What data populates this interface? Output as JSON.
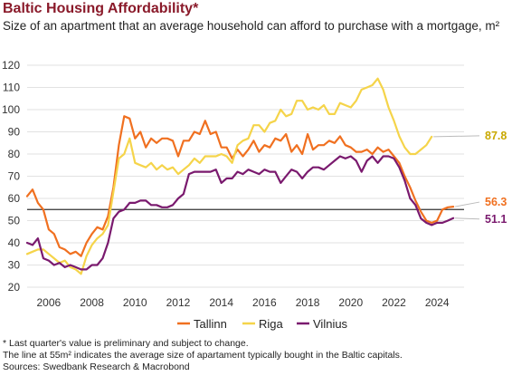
{
  "title": "Baltic Housing Affordability*",
  "subtitle": "Size of an apartment that an average household can afford to purchase with a mortgage, m²",
  "footnotes": [
    "* Last quarter's value is preliminary and subject to change.",
    "The line at 55m² indicates the average size of apartament typically bought in the Baltic capitals.",
    "Sources: Swedbank Research & Macrobond"
  ],
  "colors": {
    "tallinn": "#f07020",
    "riga": "#f5d44a",
    "vilnius": "#7a1a6e",
    "title": "#8a1a2a",
    "reference": "#333333",
    "grid": "#e2e2e2"
  },
  "chart_data": {
    "type": "line",
    "title": "Baltic Housing Affordability*",
    "xlabel": "",
    "ylabel": "",
    "xlim": [
      2005.0,
      2025.25
    ],
    "ylim": [
      20,
      120
    ],
    "yticks": [
      20,
      30,
      40,
      50,
      60,
      70,
      80,
      90,
      100,
      110,
      120
    ],
    "xticks": [
      2006,
      2008,
      2010,
      2012,
      2014,
      2016,
      2018,
      2020,
      2022,
      2024
    ],
    "grid": true,
    "legend": "bottom",
    "reference_line": {
      "value": 55
    },
    "series": [
      {
        "name": "Tallinn",
        "end_label": "56.3",
        "points": [
          [
            2005.0,
            61
          ],
          [
            2005.25,
            64
          ],
          [
            2005.5,
            58
          ],
          [
            2005.75,
            55
          ],
          [
            2006.0,
            46
          ],
          [
            2006.25,
            44
          ],
          [
            2006.5,
            38
          ],
          [
            2006.75,
            37
          ],
          [
            2007.0,
            35
          ],
          [
            2007.25,
            36
          ],
          [
            2007.5,
            34
          ],
          [
            2007.75,
            40
          ],
          [
            2008.0,
            44
          ],
          [
            2008.25,
            47
          ],
          [
            2008.5,
            46
          ],
          [
            2008.75,
            52
          ],
          [
            2009.0,
            65
          ],
          [
            2009.25,
            84
          ],
          [
            2009.5,
            97
          ],
          [
            2009.75,
            96
          ],
          [
            2010.0,
            87
          ],
          [
            2010.25,
            90
          ],
          [
            2010.5,
            83
          ],
          [
            2010.75,
            87
          ],
          [
            2011.0,
            85
          ],
          [
            2011.25,
            87
          ],
          [
            2011.5,
            87
          ],
          [
            2011.75,
            86
          ],
          [
            2012.0,
            79
          ],
          [
            2012.25,
            86
          ],
          [
            2012.5,
            86
          ],
          [
            2012.75,
            90
          ],
          [
            2013.0,
            89
          ],
          [
            2013.25,
            95
          ],
          [
            2013.5,
            89
          ],
          [
            2013.75,
            90
          ],
          [
            2014.0,
            83
          ],
          [
            2014.25,
            83
          ],
          [
            2014.5,
            78
          ],
          [
            2014.75,
            82
          ],
          [
            2015.0,
            79
          ],
          [
            2015.25,
            82
          ],
          [
            2015.5,
            86
          ],
          [
            2015.75,
            81
          ],
          [
            2016.0,
            84
          ],
          [
            2016.25,
            83
          ],
          [
            2016.5,
            87
          ],
          [
            2016.75,
            86
          ],
          [
            2017.0,
            89
          ],
          [
            2017.25,
            81
          ],
          [
            2017.5,
            84
          ],
          [
            2017.75,
            80
          ],
          [
            2018.0,
            89
          ],
          [
            2018.25,
            82
          ],
          [
            2018.5,
            84
          ],
          [
            2018.75,
            84
          ],
          [
            2019.0,
            86
          ],
          [
            2019.25,
            85
          ],
          [
            2019.5,
            88
          ],
          [
            2019.75,
            84
          ],
          [
            2020.0,
            83
          ],
          [
            2020.25,
            81
          ],
          [
            2020.5,
            81
          ],
          [
            2020.75,
            82
          ],
          [
            2021.0,
            80
          ],
          [
            2021.25,
            83
          ],
          [
            2021.5,
            81
          ],
          [
            2021.75,
            82
          ],
          [
            2022.0,
            79
          ],
          [
            2022.25,
            76
          ],
          [
            2022.5,
            70
          ],
          [
            2022.75,
            65
          ],
          [
            2023.0,
            59
          ],
          [
            2023.25,
            54
          ],
          [
            2023.5,
            50
          ],
          [
            2023.75,
            49
          ],
          [
            2024.0,
            50
          ],
          [
            2024.25,
            55
          ],
          [
            2024.5,
            56
          ],
          [
            2024.75,
            56.3
          ]
        ]
      },
      {
        "name": "Riga",
        "end_label": "87.8",
        "points": [
          [
            2005.0,
            35
          ],
          [
            2005.25,
            36
          ],
          [
            2005.5,
            37
          ],
          [
            2005.75,
            37
          ],
          [
            2006.0,
            35
          ],
          [
            2006.25,
            33
          ],
          [
            2006.5,
            31
          ],
          [
            2006.75,
            32
          ],
          [
            2007.0,
            29
          ],
          [
            2007.25,
            28
          ],
          [
            2007.5,
            26
          ],
          [
            2007.75,
            34
          ],
          [
            2008.0,
            39
          ],
          [
            2008.25,
            42
          ],
          [
            2008.5,
            44
          ],
          [
            2008.75,
            48
          ],
          [
            2009.0,
            63
          ],
          [
            2009.25,
            78
          ],
          [
            2009.5,
            80
          ],
          [
            2009.75,
            87
          ],
          [
            2010.0,
            76
          ],
          [
            2010.25,
            75
          ],
          [
            2010.5,
            74
          ],
          [
            2010.75,
            76
          ],
          [
            2011.0,
            73
          ],
          [
            2011.25,
            75
          ],
          [
            2011.5,
            73
          ],
          [
            2011.75,
            74
          ],
          [
            2012.0,
            71
          ],
          [
            2012.25,
            73
          ],
          [
            2012.5,
            75
          ],
          [
            2012.75,
            78
          ],
          [
            2013.0,
            76
          ],
          [
            2013.25,
            79
          ],
          [
            2013.5,
            79
          ],
          [
            2013.75,
            79
          ],
          [
            2014.0,
            80
          ],
          [
            2014.25,
            79
          ],
          [
            2014.5,
            76
          ],
          [
            2014.75,
            84
          ],
          [
            2015.0,
            86
          ],
          [
            2015.25,
            87
          ],
          [
            2015.5,
            93
          ],
          [
            2015.75,
            93
          ],
          [
            2016.0,
            90
          ],
          [
            2016.25,
            94
          ],
          [
            2016.5,
            95
          ],
          [
            2016.75,
            100
          ],
          [
            2017.0,
            97
          ],
          [
            2017.25,
            98
          ],
          [
            2017.5,
            104
          ],
          [
            2017.75,
            104
          ],
          [
            2018.0,
            100
          ],
          [
            2018.25,
            101
          ],
          [
            2018.5,
            100
          ],
          [
            2018.75,
            102
          ],
          [
            2019.0,
            98
          ],
          [
            2019.25,
            98
          ],
          [
            2019.5,
            103
          ],
          [
            2019.75,
            102
          ],
          [
            2020.0,
            101
          ],
          [
            2020.25,
            104
          ],
          [
            2020.5,
            109
          ],
          [
            2020.75,
            110
          ],
          [
            2021.0,
            111
          ],
          [
            2021.25,
            114
          ],
          [
            2021.5,
            109
          ],
          [
            2021.75,
            101
          ],
          [
            2022.0,
            95
          ],
          [
            2022.25,
            88
          ],
          [
            2022.5,
            83
          ],
          [
            2022.75,
            80
          ],
          [
            2023.0,
            80
          ],
          [
            2023.25,
            82
          ],
          [
            2023.5,
            84
          ],
          [
            2023.75,
            87.8
          ]
        ]
      },
      {
        "name": "Vilnius",
        "end_label": "51.1",
        "points": [
          [
            2005.0,
            40
          ],
          [
            2005.25,
            39
          ],
          [
            2005.5,
            42
          ],
          [
            2005.75,
            33
          ],
          [
            2006.0,
            32
          ],
          [
            2006.25,
            30
          ],
          [
            2006.5,
            31
          ],
          [
            2006.75,
            29
          ],
          [
            2007.0,
            30
          ],
          [
            2007.25,
            29
          ],
          [
            2007.5,
            28
          ],
          [
            2007.75,
            28
          ],
          [
            2008.0,
            30
          ],
          [
            2008.25,
            30
          ],
          [
            2008.5,
            33
          ],
          [
            2008.75,
            40
          ],
          [
            2009.0,
            51
          ],
          [
            2009.25,
            54
          ],
          [
            2009.5,
            55
          ],
          [
            2009.75,
            58
          ],
          [
            2010.0,
            58
          ],
          [
            2010.25,
            59
          ],
          [
            2010.5,
            59
          ],
          [
            2010.75,
            57
          ],
          [
            2011.0,
            57
          ],
          [
            2011.25,
            56
          ],
          [
            2011.5,
            56
          ],
          [
            2011.75,
            57
          ],
          [
            2012.0,
            60
          ],
          [
            2012.25,
            62
          ],
          [
            2012.5,
            71
          ],
          [
            2012.75,
            72
          ],
          [
            2013.0,
            72
          ],
          [
            2013.25,
            72
          ],
          [
            2013.5,
            72
          ],
          [
            2013.75,
            73
          ],
          [
            2014.0,
            67
          ],
          [
            2014.25,
            69
          ],
          [
            2014.5,
            69
          ],
          [
            2014.75,
            72
          ],
          [
            2015.0,
            71
          ],
          [
            2015.25,
            73
          ],
          [
            2015.5,
            72
          ],
          [
            2015.75,
            71
          ],
          [
            2016.0,
            73
          ],
          [
            2016.25,
            72
          ],
          [
            2016.5,
            72
          ],
          [
            2016.75,
            67
          ],
          [
            2017.0,
            70
          ],
          [
            2017.25,
            73
          ],
          [
            2017.5,
            72
          ],
          [
            2017.75,
            69
          ],
          [
            2018.0,
            72
          ],
          [
            2018.25,
            74
          ],
          [
            2018.5,
            74
          ],
          [
            2018.75,
            73
          ],
          [
            2019.0,
            75
          ],
          [
            2019.25,
            77
          ],
          [
            2019.5,
            79
          ],
          [
            2019.75,
            78
          ],
          [
            2020.0,
            79
          ],
          [
            2020.25,
            77
          ],
          [
            2020.5,
            72
          ],
          [
            2020.75,
            77
          ],
          [
            2021.0,
            79
          ],
          [
            2021.25,
            76
          ],
          [
            2021.5,
            79
          ],
          [
            2021.75,
            79
          ],
          [
            2022.0,
            78
          ],
          [
            2022.25,
            74
          ],
          [
            2022.5,
            68
          ],
          [
            2022.75,
            60
          ],
          [
            2023.0,
            57
          ],
          [
            2023.25,
            51
          ],
          [
            2023.5,
            49
          ],
          [
            2023.75,
            48
          ],
          [
            2024.0,
            49
          ],
          [
            2024.25,
            49
          ],
          [
            2024.5,
            50
          ],
          [
            2024.75,
            51.1
          ]
        ]
      }
    ]
  }
}
